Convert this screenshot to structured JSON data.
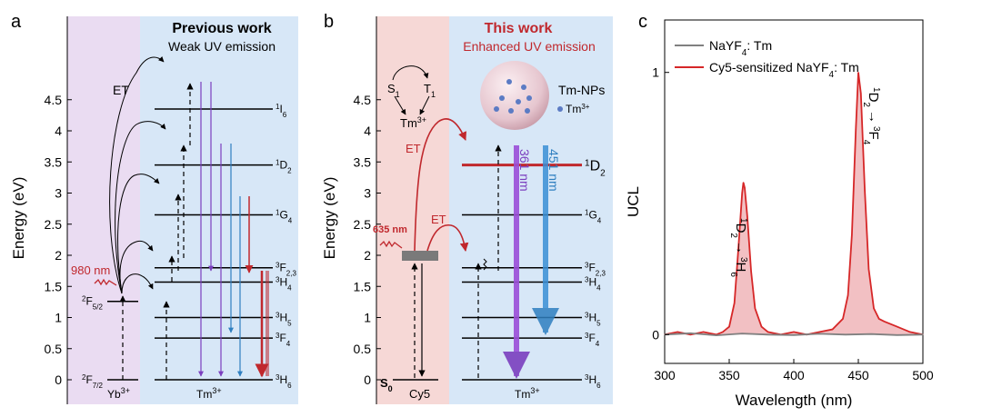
{
  "panels": {
    "a": {
      "label": "a",
      "title": "Previous work",
      "subtitle": "Weak UV emission",
      "et_label": "ET",
      "excitation": "980 nm",
      "ytitle": "Energy (eV)",
      "yb_bottom": "Yb",
      "yb_bottom_sup": "3+",
      "tm_bottom": "Tm",
      "tm_bottom_sup": "3+",
      "yb_levels": [
        {
          "term_pre": "2",
          "term_main": "F",
          "term_sub": "5/2",
          "energy": 1.26
        },
        {
          "term_pre": "2",
          "term_main": "F",
          "term_sub": "7/2",
          "energy": 0.0
        }
      ],
      "tm_levels": [
        {
          "term_pre": "1",
          "term_main": "I",
          "term_sub": "6",
          "energy": 4.35
        },
        {
          "term_pre": "1",
          "term_main": "D",
          "term_sub": "2",
          "energy": 3.45
        },
        {
          "term_pre": "1",
          "term_main": "G",
          "term_sub": "4",
          "energy": 2.65
        },
        {
          "term_pre": "3",
          "term_main": "F",
          "term_sub": "2,3",
          "energy": 1.8
        },
        {
          "term_pre": "3",
          "term_main": "H",
          "term_sub": "4",
          "energy": 1.57
        },
        {
          "term_pre": "3",
          "term_main": "H",
          "term_sub": "5",
          "energy": 1.0
        },
        {
          "term_pre": "3",
          "term_main": "F",
          "term_sub": "4",
          "energy": 0.67
        },
        {
          "term_pre": "3",
          "term_main": "H",
          "term_sub": "6",
          "energy": 0.0
        }
      ]
    },
    "b": {
      "label": "b",
      "title": "This work",
      "subtitle": "Enhanced UV emission",
      "et_label_1": "ET",
      "et_label_2": "ET",
      "excitation": "635 nm",
      "ytitle": "Energy (eV)",
      "s0_label": "S",
      "s0_sub": "0",
      "cy5_label": "Cy5",
      "tm_bottom": "Tm",
      "tm_bottom_sup": "3+",
      "inset_s1": "S",
      "inset_s1_sub": "1",
      "inset_t1": "T",
      "inset_t1_sub": "1",
      "inset_tm": "Tm",
      "inset_tm_sup": "3+",
      "np_label": "Tm-NPs",
      "np_legend": "Tm",
      "np_legend_sup": "3+",
      "emission_1": "361 nm",
      "emission_2": "451 nm",
      "tm_levels": [
        {
          "term_pre": "1",
          "term_main": "D",
          "term_sub": "2",
          "energy": 3.45,
          "highlight": true
        },
        {
          "term_pre": "1",
          "term_main": "G",
          "term_sub": "4",
          "energy": 2.65
        },
        {
          "term_pre": "3",
          "term_main": "F",
          "term_sub": "2,3",
          "energy": 1.8
        },
        {
          "term_pre": "3",
          "term_main": "H",
          "term_sub": "4",
          "energy": 1.57
        },
        {
          "term_pre": "3",
          "term_main": "H",
          "term_sub": "5",
          "energy": 1.0
        },
        {
          "term_pre": "3",
          "term_main": "F",
          "term_sub": "4",
          "energy": 0.67
        },
        {
          "term_pre": "3",
          "term_main": "H",
          "term_sub": "6",
          "energy": 0.0
        }
      ]
    },
    "c": {
      "label": "c"
    }
  },
  "energy_axis": {
    "ylim": [
      -0.15,
      5.1
    ],
    "ticks": [
      "0",
      "0.5",
      "1",
      "1.5",
      "2",
      "2.5",
      "3",
      "3.5",
      "4",
      "4.5"
    ],
    "tick_values": [
      0,
      0.5,
      1,
      1.5,
      2,
      2.5,
      3,
      3.5,
      4,
      4.5
    ]
  },
  "chart_data": {
    "type": "line",
    "title": "",
    "xlabel": "Wavelength (nm)",
    "ylabel": "UCL",
    "xlim": [
      300,
      500
    ],
    "ylim": [
      -0.11,
      1.2
    ],
    "xticks": [
      300,
      350,
      400,
      450,
      500
    ],
    "yticks": [
      0,
      1
    ],
    "legend_position": "top-left",
    "series": [
      {
        "name": "NaYF4: Tm",
        "name_parts": {
          "main": "NaYF",
          "sub": "4",
          "rest": ": Tm"
        },
        "color": "#808080",
        "x": [
          300,
          320,
          340,
          360,
          380,
          400,
          420,
          440,
          460,
          480,
          500
        ],
        "y": [
          0.0,
          0.005,
          -0.003,
          0.004,
          0.0,
          -0.002,
          0.003,
          0.0,
          0.002,
          -0.002,
          0.0
        ]
      },
      {
        "name": "Cy5-sensitized NaYF4: Tm",
        "name_parts": {
          "main": "Cy5-sensitized NaYF",
          "sub": "4",
          "rest": ": Tm"
        },
        "color": "#d62728",
        "fill": "#f2c0c3",
        "x": [
          300,
          310,
          320,
          330,
          340,
          345,
          350,
          354,
          357,
          360,
          361,
          362,
          364,
          367,
          370,
          375,
          380,
          390,
          400,
          410,
          420,
          430,
          438,
          442,
          445,
          448,
          450,
          452,
          455,
          458,
          462,
          466,
          470,
          480,
          490,
          500
        ],
        "y": [
          0.0,
          0.01,
          0.0,
          0.01,
          0.0,
          0.01,
          0.03,
          0.12,
          0.32,
          0.54,
          0.58,
          0.56,
          0.45,
          0.24,
          0.1,
          0.03,
          0.01,
          0.0,
          0.01,
          0.0,
          0.01,
          0.02,
          0.06,
          0.15,
          0.38,
          0.78,
          1.0,
          0.92,
          0.55,
          0.25,
          0.1,
          0.06,
          0.05,
          0.03,
          0.01,
          0.0
        ]
      }
    ],
    "annotations": [
      {
        "from_pre": "1",
        "from_main": "D",
        "from_sub": "2",
        "arrow": "→",
        "to_pre": "3",
        "to_main": "H",
        "to_sub": "6",
        "x": 361,
        "y": 0.58
      },
      {
        "from_pre": "1",
        "from_main": "D",
        "from_sub": "2",
        "arrow": "→",
        "to_pre": "3",
        "to_main": "F",
        "to_sub": "4",
        "x": 450,
        "y": 1.0
      }
    ]
  }
}
